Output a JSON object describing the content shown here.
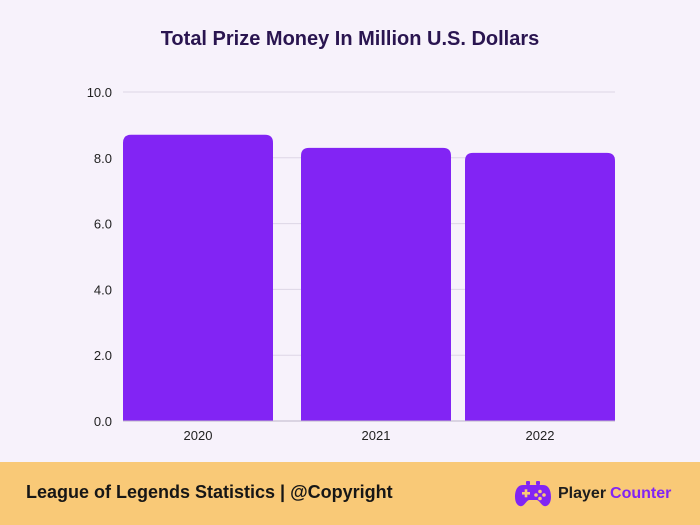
{
  "chart_data": {
    "type": "bar",
    "title": "Total Prize Money In Million U.S. Dollars",
    "categories": [
      "2020",
      "2021",
      "2022"
    ],
    "values": [
      8.7,
      8.3,
      8.15
    ],
    "ylim": [
      0,
      10
    ],
    "yticks": [
      "0.0",
      "2.0",
      "4.0",
      "6.0",
      "8.0",
      "10.0"
    ],
    "xlabel": "",
    "ylabel": "",
    "grid": true,
    "bar_color": "#8224f4"
  },
  "footer": {
    "text": "League of Legends Statistics |  @Copyright",
    "brand_name": "Player",
    "brand_accent": "Counter",
    "logo_icon": "gamepad-icon"
  },
  "colors": {
    "background": "#f7f2fb",
    "footer_bg": "#f9c977",
    "bar": "#8224f4",
    "title": "#2a1550"
  }
}
